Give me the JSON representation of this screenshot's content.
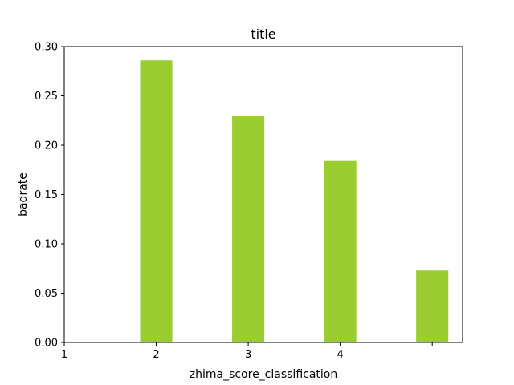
{
  "chart_data": {
    "type": "bar",
    "title": "title",
    "xlabel": "zhima_score_classification",
    "ylabel": "badrate",
    "x_tick_labels": [
      {
        "x": 1,
        "label": "1"
      },
      {
        "x": 2,
        "label": "2"
      },
      {
        "x": 3,
        "label": "3"
      },
      {
        "x": 4,
        "label": "4"
      },
      {
        "x": 5,
        "label": ""
      }
    ],
    "y_ticks": [
      "0.00",
      "0.05",
      "0.10",
      "0.15",
      "0.20",
      "0.25",
      "0.30"
    ],
    "xlim": [
      1,
      5.33
    ],
    "ylim": [
      0,
      0.3
    ],
    "bars": [
      {
        "x": 2,
        "value": 0.286
      },
      {
        "x": 3,
        "value": 0.23
      },
      {
        "x": 4,
        "value": 0.184
      },
      {
        "x": 5,
        "value": 0.073
      }
    ],
    "bar_color": "#9acd32",
    "grid": false,
    "legend": "none"
  }
}
